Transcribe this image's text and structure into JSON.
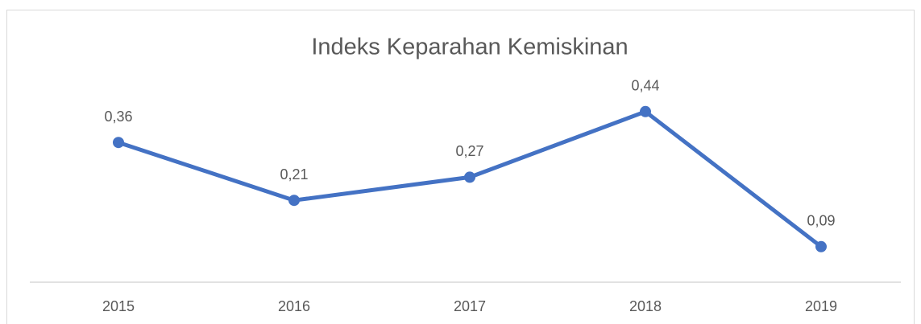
{
  "chart_data": {
    "type": "line",
    "title": "Indeks Keparahan Kemiskinan",
    "categories": [
      "2015",
      "2016",
      "2017",
      "2018",
      "2019"
    ],
    "series": [
      {
        "color": "#4472c4",
        "values": [
          0.36,
          0.21,
          0.27,
          0.44,
          0.09
        ],
        "value_labels": [
          "0,36",
          "0,21",
          "0,27",
          "0,44",
          "0,09"
        ]
      }
    ],
    "ylim": [
      0,
      0.5
    ]
  }
}
